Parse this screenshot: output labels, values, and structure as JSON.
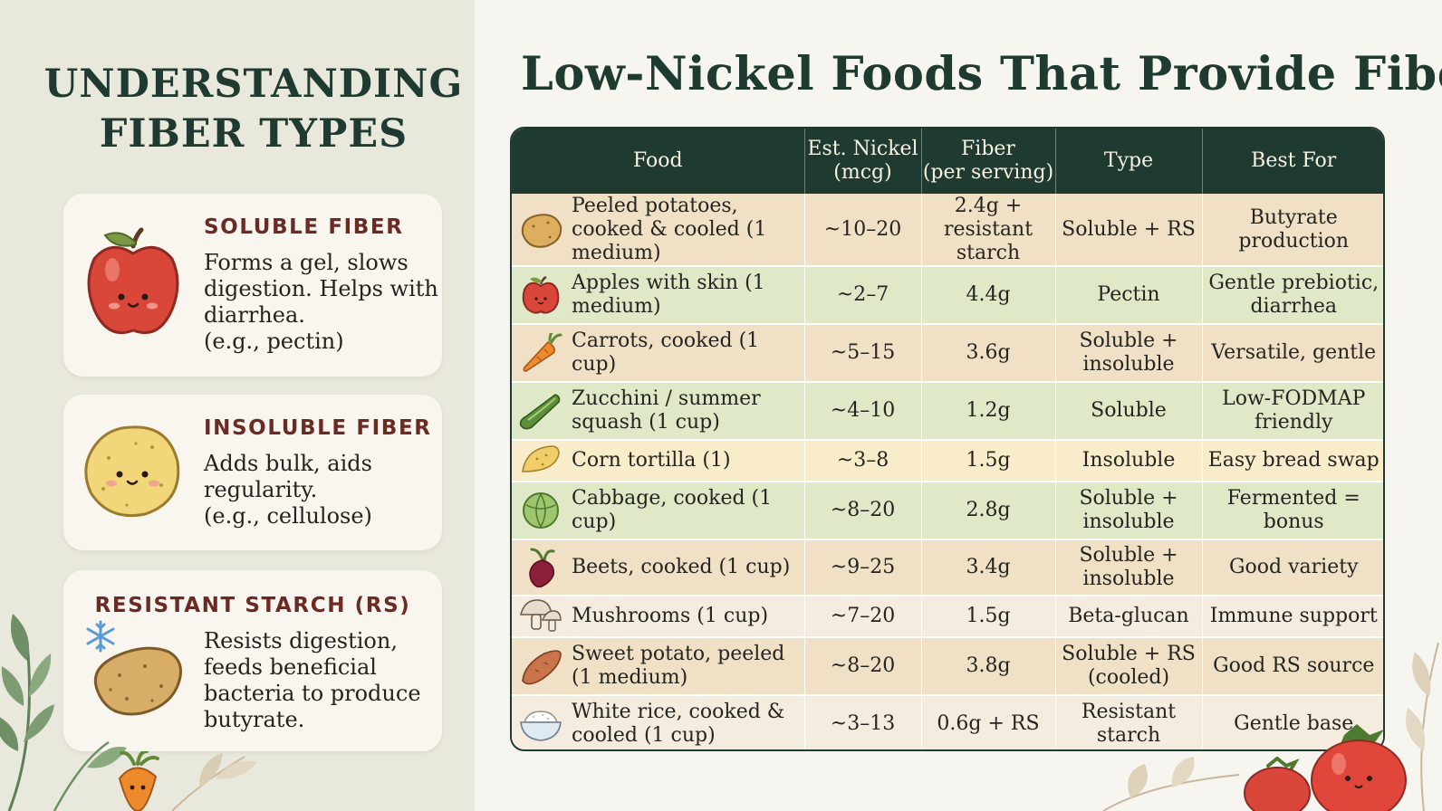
{
  "left": {
    "title_line1": "UNDERSTANDING",
    "title_line2": "FIBER TYPES",
    "cards": [
      {
        "heading": "SOLUBLE FIBER",
        "body": "Forms a gel, slows\ndigestion. Helps with\ndiarrhea.\n(e.g., pectin)",
        "icon": "apple-icon"
      },
      {
        "heading": "INSOLUBLE FIBER",
        "body": "Adds bulk, aids\nregularity.\n(e.g., cellulose)",
        "icon": "potato-icon"
      },
      {
        "heading": "RESISTANT STARCH (RS)",
        "body": "Resists digestion,\nfeeds beneficial\nbacteria to produce\nbutyrate.",
        "icon": "cold-potato-icon"
      }
    ]
  },
  "main": {
    "title": "Low-Nickel Foods That Provide Fiber",
    "headers": [
      "Food",
      "Est. Nickel\n(mcg)",
      "Fiber\n(per serving)",
      "Type",
      "Best For"
    ],
    "rows": [
      {
        "food": "Peeled potatoes, cooked & cooled (1 medium)",
        "nickel": "~10–20",
        "fiber": "2.4g + resistant starch",
        "type": "Soluble + RS",
        "best": "Butyrate production",
        "icon": "potato-icon"
      },
      {
        "food": "Apples with skin (1 medium)",
        "nickel": "~2–7",
        "fiber": "4.4g",
        "type": "Pectin",
        "best": "Gentle prebiotic, diarrhea",
        "icon": "apple-icon"
      },
      {
        "food": "Carrots, cooked (1 cup)",
        "nickel": "~5–15",
        "fiber": "3.6g",
        "type": "Soluble + insoluble",
        "best": "Versatile, gentle",
        "icon": "carrot-icon"
      },
      {
        "food": "Zucchini / summer squash (1 cup)",
        "nickel": "~4–10",
        "fiber": "1.2g",
        "type": "Soluble",
        "best": "Low-FODMAP friendly",
        "icon": "zucchini-icon"
      },
      {
        "food": "Corn tortilla (1)",
        "nickel": "~3–8",
        "fiber": "1.5g",
        "type": "Insoluble",
        "best": "Easy bread swap",
        "icon": "tortilla-icon"
      },
      {
        "food": "Cabbage, cooked (1 cup)",
        "nickel": "~8–20",
        "fiber": "2.8g",
        "type": "Soluble + insoluble",
        "best": "Fermented = bonus",
        "icon": "cabbage-icon"
      },
      {
        "food": "Beets, cooked (1 cup)",
        "nickel": "~9–25",
        "fiber": "3.4g",
        "type": "Soluble + insoluble",
        "best": "Good variety",
        "icon": "beet-icon"
      },
      {
        "food": "Mushrooms (1 cup)",
        "nickel": "~7–20",
        "fiber": "1.5g",
        "type": "Beta-glucan",
        "best": "Immune support",
        "icon": "mushroom-icon"
      },
      {
        "food": "Sweet potato, peeled (1 medium)",
        "nickel": "~8–20",
        "fiber": "3.8g",
        "type": "Soluble + RS (cooled)",
        "best": "Good RS source",
        "icon": "sweet-potato-icon"
      },
      {
        "food": "White rice, cooked & cooled (1 cup)",
        "nickel": "~3–13",
        "fiber": "0.6g + RS",
        "type": "Resistant starch",
        "best": "Gentle base",
        "icon": "rice-bowl-icon"
      }
    ]
  },
  "colors": {
    "header_bg": "#1f3a30",
    "row_tan": "#efe0c6",
    "row_green": "#dfe8c7",
    "row_cream": "#f8eccb",
    "row_light": "#f3ecdf",
    "accent_heading": "#6b2b24"
  }
}
